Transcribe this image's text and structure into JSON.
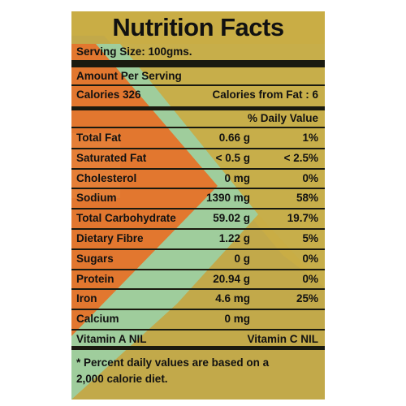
{
  "title": "Nutrition Facts",
  "serving_size": "Serving Size: 100gms.",
  "amount_per_serving": "Amount Per Serving",
  "calories": "Calories 326",
  "calories_from_fat": "Calories from Fat : 6",
  "daily_value_header": "% Daily Value",
  "rows": [
    [
      "Total Fat",
      "0.66 g",
      "1%"
    ],
    [
      "Saturated Fat",
      "< 0.5 g",
      "< 2.5%"
    ],
    [
      "Cholesterol",
      "0 mg",
      "0%"
    ],
    [
      "Sodium",
      "1390 mg",
      "58%"
    ],
    [
      "Total Carbohydrate",
      "59.02 g",
      "19.7%"
    ],
    [
      "Dietary Fibre",
      "1.22 g",
      "5%"
    ],
    [
      "Sugars",
      "0 g",
      "0%"
    ],
    [
      "Protein",
      "20.94 g",
      "0%"
    ],
    [
      "Iron",
      "4.6 mg",
      "25%"
    ],
    [
      "Calcium",
      "0 mg"
    ]
  ],
  "vitamin_a": "Vitamin A NIL",
  "vitamin_c": "Vitamin C NIL",
  "footnote": [
    "* Percent daily values are based on a",
    "2,000 calorie diet."
  ]
}
